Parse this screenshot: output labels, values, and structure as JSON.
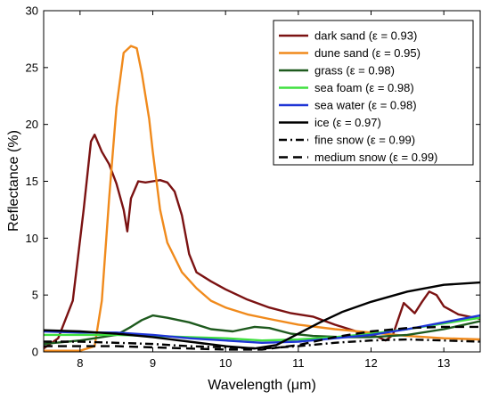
{
  "chart_data": {
    "type": "line",
    "title": "",
    "xlabel": "Wavelength (μm)",
    "ylabel": "Reflectance (%)",
    "xlim": [
      7.5,
      13.5
    ],
    "ylim": [
      0,
      30
    ],
    "xticks": [
      8,
      9,
      10,
      11,
      12,
      13
    ],
    "yticks": [
      0,
      5,
      10,
      15,
      20,
      25,
      30
    ],
    "grid": false,
    "legend_position": "top-right",
    "series": [
      {
        "name": "dark sand (ε = 0.93)",
        "color": "#7b1212",
        "dash": "solid",
        "points": [
          [
            7.5,
            0.3
          ],
          [
            7.7,
            1.2
          ],
          [
            7.9,
            4.5
          ],
          [
            8.05,
            12.5
          ],
          [
            8.15,
            18.5
          ],
          [
            8.2,
            19.1
          ],
          [
            8.3,
            17.6
          ],
          [
            8.4,
            16.5
          ],
          [
            8.5,
            14.8
          ],
          [
            8.6,
            12.5
          ],
          [
            8.65,
            10.6
          ],
          [
            8.7,
            13.5
          ],
          [
            8.8,
            15.0
          ],
          [
            8.9,
            14.9
          ],
          [
            9.0,
            15.0
          ],
          [
            9.1,
            15.1
          ],
          [
            9.2,
            14.9
          ],
          [
            9.3,
            14.1
          ],
          [
            9.4,
            12.0
          ],
          [
            9.5,
            8.6
          ],
          [
            9.6,
            7.0
          ],
          [
            9.8,
            6.2
          ],
          [
            10.0,
            5.5
          ],
          [
            10.3,
            4.6
          ],
          [
            10.6,
            3.9
          ],
          [
            10.9,
            3.4
          ],
          [
            11.2,
            3.1
          ],
          [
            11.5,
            2.4
          ],
          [
            11.8,
            1.8
          ],
          [
            12.1,
            1.3
          ],
          [
            12.2,
            1.0
          ],
          [
            12.3,
            1.5
          ],
          [
            12.45,
            4.3
          ],
          [
            12.6,
            3.4
          ],
          [
            12.7,
            4.4
          ],
          [
            12.8,
            5.3
          ],
          [
            12.9,
            5.0
          ],
          [
            13.0,
            4.0
          ],
          [
            13.2,
            3.3
          ],
          [
            13.5,
            2.9
          ]
        ]
      },
      {
        "name": "dune sand (ε = 0.95)",
        "color": "#f08a1c",
        "dash": "solid",
        "points": [
          [
            7.5,
            0.1
          ],
          [
            8.0,
            0.1
          ],
          [
            8.2,
            0.5
          ],
          [
            8.3,
            4.5
          ],
          [
            8.4,
            13.5
          ],
          [
            8.5,
            21.5
          ],
          [
            8.6,
            26.3
          ],
          [
            8.7,
            26.9
          ],
          [
            8.78,
            26.7
          ],
          [
            8.85,
            24.5
          ],
          [
            8.95,
            20.5
          ],
          [
            9.0,
            17.6
          ],
          [
            9.1,
            12.5
          ],
          [
            9.2,
            9.6
          ],
          [
            9.4,
            7.0
          ],
          [
            9.6,
            5.6
          ],
          [
            9.8,
            4.5
          ],
          [
            10.0,
            3.9
          ],
          [
            10.3,
            3.3
          ],
          [
            10.6,
            2.9
          ],
          [
            11.0,
            2.4
          ],
          [
            11.5,
            2.0
          ],
          [
            12.0,
            1.7
          ],
          [
            12.5,
            1.4
          ],
          [
            13.0,
            1.2
          ],
          [
            13.5,
            1.1
          ]
        ]
      },
      {
        "name": "grass (ε = 0.98)",
        "color": "#1e5a1e",
        "dash": "solid",
        "points": [
          [
            7.5,
            0.7
          ],
          [
            8.0,
            1.0
          ],
          [
            8.5,
            1.5
          ],
          [
            8.7,
            2.2
          ],
          [
            8.85,
            2.8
          ],
          [
            9.0,
            3.2
          ],
          [
            9.2,
            3.0
          ],
          [
            9.5,
            2.6
          ],
          [
            9.8,
            2.0
          ],
          [
            10.1,
            1.8
          ],
          [
            10.4,
            2.2
          ],
          [
            10.6,
            2.1
          ],
          [
            10.9,
            1.6
          ],
          [
            11.2,
            1.4
          ],
          [
            11.6,
            1.3
          ],
          [
            12.0,
            1.3
          ],
          [
            12.5,
            1.5
          ],
          [
            13.0,
            2.0
          ],
          [
            13.5,
            2.7
          ]
        ]
      },
      {
        "name": "sea foam (ε = 0.98)",
        "color": "#3fe03f",
        "dash": "solid",
        "points": [
          [
            7.5,
            1.5
          ],
          [
            8.0,
            1.5
          ],
          [
            8.5,
            1.5
          ],
          [
            9.0,
            1.4
          ],
          [
            9.5,
            1.3
          ],
          [
            10.0,
            1.2
          ],
          [
            10.5,
            1.0
          ],
          [
            11.0,
            1.1
          ],
          [
            11.5,
            1.3
          ],
          [
            12.0,
            1.6
          ],
          [
            12.5,
            2.0
          ],
          [
            13.0,
            2.5
          ],
          [
            13.5,
            3.0
          ]
        ]
      },
      {
        "name": "sea water (ε = 0.98)",
        "color": "#1f35d6",
        "dash": "solid",
        "points": [
          [
            7.5,
            1.8
          ],
          [
            8.0,
            1.7
          ],
          [
            8.5,
            1.7
          ],
          [
            9.0,
            1.5
          ],
          [
            9.5,
            1.2
          ],
          [
            10.0,
            1.0
          ],
          [
            10.5,
            0.8
          ],
          [
            11.0,
            0.9
          ],
          [
            11.5,
            1.2
          ],
          [
            12.0,
            1.5
          ],
          [
            12.5,
            2.0
          ],
          [
            13.0,
            2.6
          ],
          [
            13.5,
            3.2
          ]
        ]
      },
      {
        "name": "ice (ε = 0.97)",
        "color": "#000000",
        "dash": "solid",
        "points": [
          [
            7.5,
            1.9
          ],
          [
            8.0,
            1.8
          ],
          [
            8.5,
            1.6
          ],
          [
            9.0,
            1.3
          ],
          [
            9.5,
            0.9
          ],
          [
            10.0,
            0.5
          ],
          [
            10.4,
            0.3
          ],
          [
            10.7,
            0.6
          ],
          [
            11.0,
            1.6
          ],
          [
            11.3,
            2.6
          ],
          [
            11.6,
            3.5
          ],
          [
            12.0,
            4.4
          ],
          [
            12.5,
            5.3
          ],
          [
            13.0,
            5.9
          ],
          [
            13.5,
            6.1
          ]
        ]
      },
      {
        "name": "fine snow (ε = 0.99)",
        "color": "#000000",
        "dash": "dashdot",
        "points": [
          [
            7.5,
            0.9
          ],
          [
            8.0,
            0.9
          ],
          [
            8.5,
            0.8
          ],
          [
            9.0,
            0.7
          ],
          [
            9.5,
            0.5
          ],
          [
            10.0,
            0.4
          ],
          [
            10.5,
            0.3
          ],
          [
            11.0,
            0.5
          ],
          [
            11.5,
            0.8
          ],
          [
            12.0,
            1.0
          ],
          [
            12.5,
            1.1
          ],
          [
            13.0,
            1.0
          ],
          [
            13.5,
            0.9
          ]
        ]
      },
      {
        "name": "medium snow (ε = 0.99)",
        "color": "#000000",
        "dash": "dashed",
        "points": [
          [
            7.5,
            0.5
          ],
          [
            8.0,
            0.5
          ],
          [
            8.5,
            0.5
          ],
          [
            9.0,
            0.4
          ],
          [
            9.5,
            0.3
          ],
          [
            10.0,
            0.2
          ],
          [
            10.5,
            0.2
          ],
          [
            11.0,
            0.6
          ],
          [
            11.5,
            1.3
          ],
          [
            12.0,
            1.8
          ],
          [
            12.5,
            2.1
          ],
          [
            13.0,
            2.2
          ],
          [
            13.5,
            2.2
          ]
        ]
      }
    ]
  }
}
